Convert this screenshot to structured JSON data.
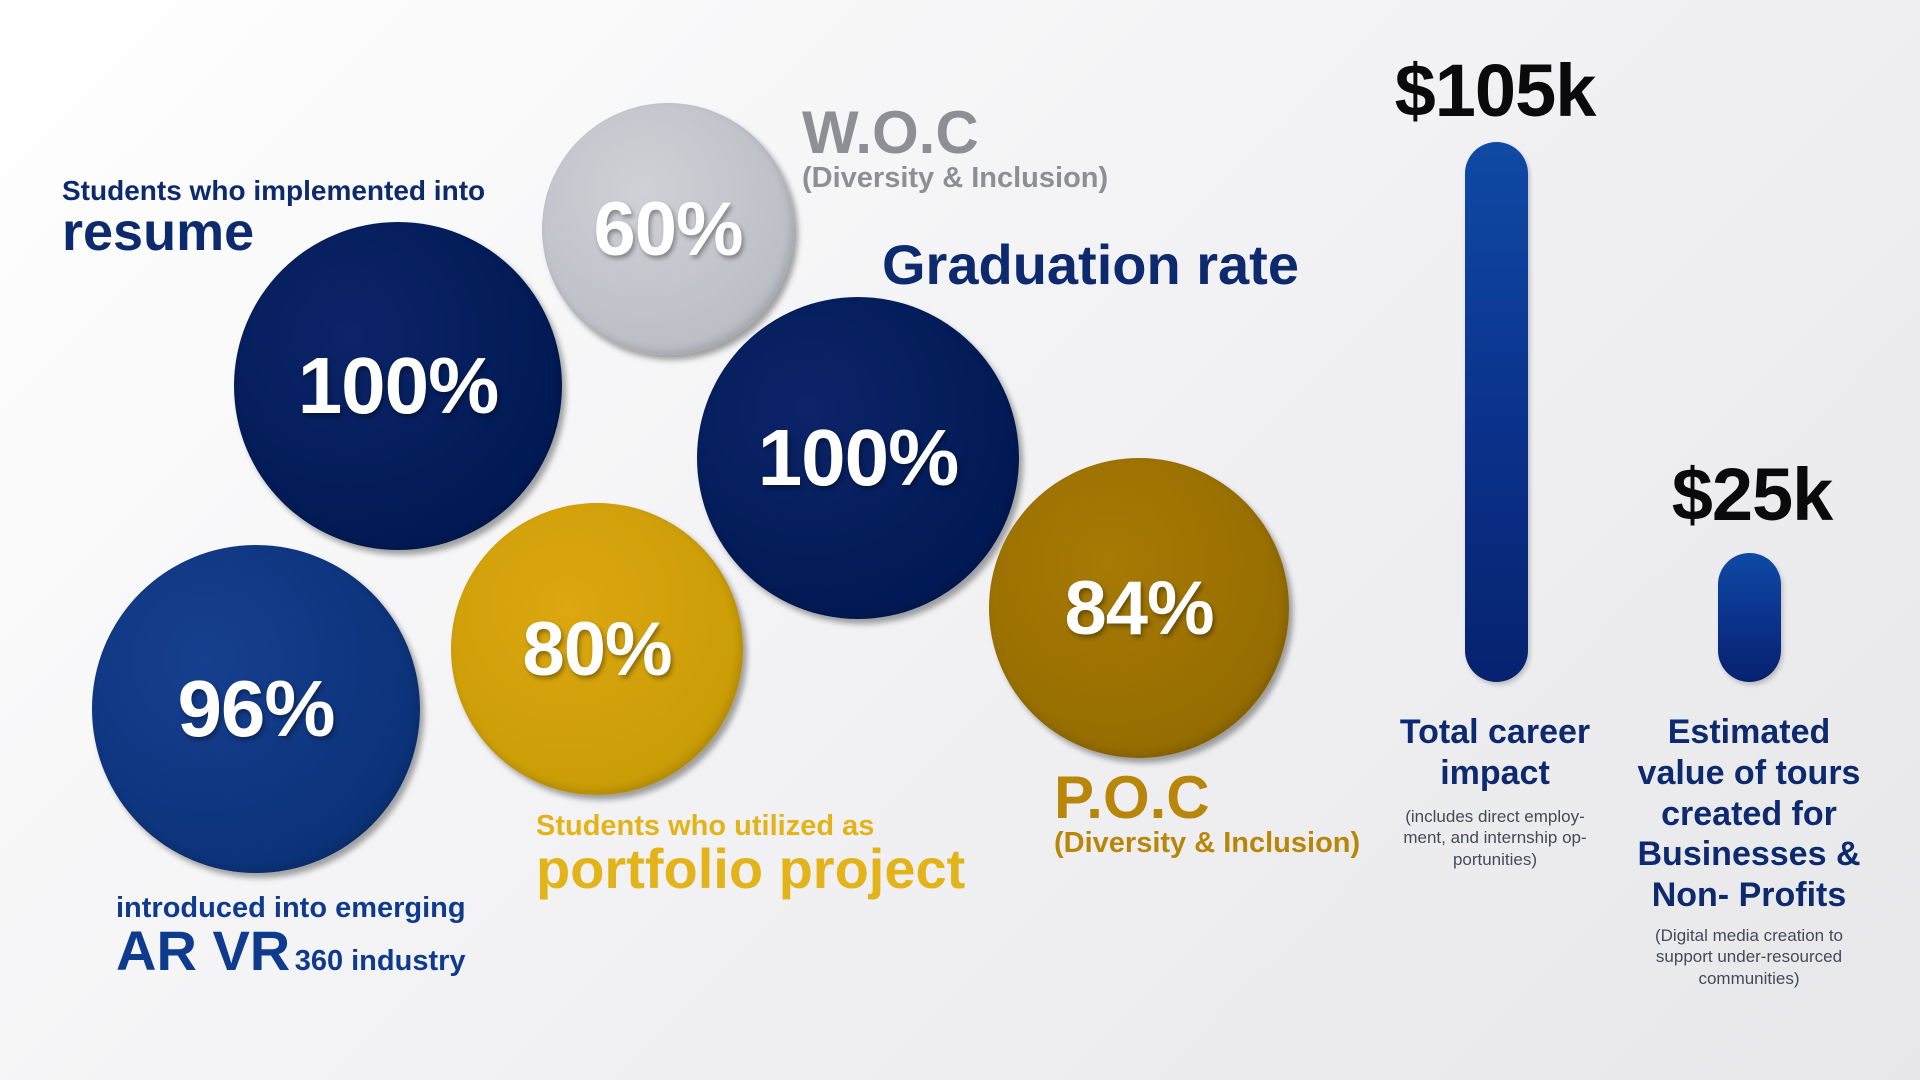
{
  "colors": {
    "navy": "#001a55",
    "blue": "#0b3278",
    "silver": "#babcc4",
    "gold": "#c89b05",
    "bronze": "#936b00",
    "label_navy": "#0d2a6e",
    "label_blue": "#0f3b8f",
    "label_gold": "#e3b31a",
    "label_bronze": "#b8870a",
    "label_gray": "#8d8f95"
  },
  "stats": {
    "resume": {
      "value": "100%",
      "line1": "Students who implemented into",
      "line2": "resume"
    },
    "woc": {
      "value": "60%",
      "line1": "W.O.C",
      "line2": "(Diversity & Inclusion)"
    },
    "graduation": {
      "value": "100%",
      "line1": "Graduation rate"
    },
    "arvr": {
      "value": "96%",
      "line1": "introduced into emerging",
      "line2_big": "AR VR",
      "line2_small": "360 industry"
    },
    "portfolio": {
      "value": "80%",
      "line1": "Students who utilized as",
      "line2": "portfolio project"
    },
    "poc": {
      "value": "84%",
      "line1": "P.O.C",
      "line2": "(Diversity & Inclusion)"
    }
  },
  "chart_data": {
    "type": "bar",
    "categories": [
      "Total career impact",
      "Estimated value of tours created for Businesses & Non- Profits"
    ],
    "values": [
      105,
      25
    ],
    "value_labels": [
      "$105k",
      "$25k"
    ],
    "unit": "$k",
    "ylim": [
      0,
      105
    ],
    "grid": false
  },
  "bars": {
    "career": {
      "value_label": "$105k",
      "caption_l1": "Total career",
      "caption_l2": "impact",
      "note_l1": "(includes direct employ-",
      "note_l2": "ment, and internship op-",
      "note_l3": "portunities)"
    },
    "tours": {
      "value_label": "$25k",
      "caption_l1": "Estimated",
      "caption_l2": "value of tours",
      "caption_l3": "created for",
      "caption_l4": "Businesses &",
      "caption_l5": "Non- Profits",
      "note_l1": "(Digital media creation to",
      "note_l2": "support under-resourced",
      "note_l3": "communities)"
    }
  }
}
